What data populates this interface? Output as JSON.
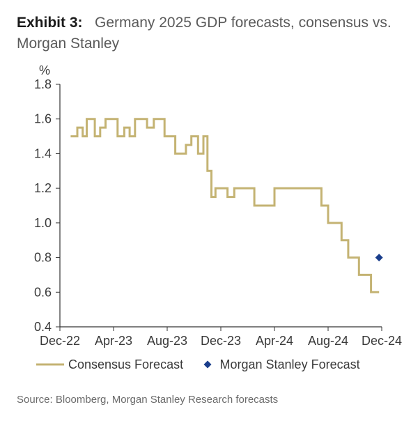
{
  "header": {
    "exhibit_label": "Exhibit 3:",
    "title_rest": "Germany 2025 GDP forecasts, consensus vs. Morgan Stanley"
  },
  "chart": {
    "type": "line",
    "y_unit_label": "%",
    "ylim": [
      0.4,
      1.8
    ],
    "ytick_step": 0.2,
    "yticks": [
      "0.4",
      "0.6",
      "0.8",
      "1.0",
      "1.2",
      "1.4",
      "1.6",
      "1.8"
    ],
    "xticks": [
      "Dec-22",
      "Apr-23",
      "Aug-23",
      "Dec-23",
      "Apr-24",
      "Aug-24",
      "Dec-24"
    ],
    "x_range_months": 24,
    "background_color": "#ffffff",
    "axis_color": "#333333",
    "tick_fontsize": 18,
    "tick_color": "#3a3a3a",
    "unit_fontsize": 18,
    "series": {
      "consensus": {
        "label": "Consensus Forecast",
        "color": "#c4b373",
        "line_width": 3,
        "points": [
          [
            0.8,
            1.5
          ],
          [
            1.3,
            1.5
          ],
          [
            1.3,
            1.55
          ],
          [
            1.7,
            1.55
          ],
          [
            1.7,
            1.5
          ],
          [
            2.0,
            1.5
          ],
          [
            2.0,
            1.6
          ],
          [
            2.6,
            1.6
          ],
          [
            2.6,
            1.5
          ],
          [
            3.0,
            1.5
          ],
          [
            3.0,
            1.55
          ],
          [
            3.4,
            1.55
          ],
          [
            3.4,
            1.6
          ],
          [
            4.3,
            1.6
          ],
          [
            4.3,
            1.5
          ],
          [
            4.8,
            1.5
          ],
          [
            4.8,
            1.55
          ],
          [
            5.2,
            1.55
          ],
          [
            5.2,
            1.5
          ],
          [
            5.6,
            1.5
          ],
          [
            5.6,
            1.6
          ],
          [
            6.5,
            1.6
          ],
          [
            6.5,
            1.55
          ],
          [
            7.0,
            1.55
          ],
          [
            7.0,
            1.6
          ],
          [
            7.8,
            1.6
          ],
          [
            7.8,
            1.5
          ],
          [
            8.6,
            1.5
          ],
          [
            8.6,
            1.4
          ],
          [
            9.4,
            1.4
          ],
          [
            9.4,
            1.45
          ],
          [
            9.8,
            1.45
          ],
          [
            9.8,
            1.5
          ],
          [
            10.3,
            1.5
          ],
          [
            10.3,
            1.4
          ],
          [
            10.7,
            1.4
          ],
          [
            10.7,
            1.5
          ],
          [
            11.0,
            1.5
          ],
          [
            11.0,
            1.3
          ],
          [
            11.3,
            1.3
          ],
          [
            11.3,
            1.15
          ],
          [
            11.6,
            1.15
          ],
          [
            11.6,
            1.2
          ],
          [
            12.5,
            1.2
          ],
          [
            12.5,
            1.15
          ],
          [
            13.0,
            1.15
          ],
          [
            13.0,
            1.2
          ],
          [
            14.5,
            1.2
          ],
          [
            14.5,
            1.1
          ],
          [
            16.0,
            1.1
          ],
          [
            16.0,
            1.2
          ],
          [
            19.5,
            1.2
          ],
          [
            19.5,
            1.1
          ],
          [
            20.0,
            1.1
          ],
          [
            20.0,
            1.0
          ],
          [
            21.0,
            1.0
          ],
          [
            21.0,
            0.9
          ],
          [
            21.5,
            0.9
          ],
          [
            21.5,
            0.8
          ],
          [
            22.3,
            0.8
          ],
          [
            22.3,
            0.7
          ],
          [
            23.2,
            0.7
          ],
          [
            23.2,
            0.6
          ],
          [
            23.8,
            0.6
          ]
        ]
      },
      "morgan_stanley": {
        "label": "Morgan Stanley Forecast",
        "color": "#1a3e8c",
        "marker": "diamond",
        "marker_size": 11,
        "points": [
          [
            23.8,
            0.8
          ]
        ]
      }
    },
    "legend": {
      "fontsize": 18,
      "line_sample_width": 40
    }
  },
  "source": "Source: Bloomberg, Morgan Stanley Research forecasts"
}
